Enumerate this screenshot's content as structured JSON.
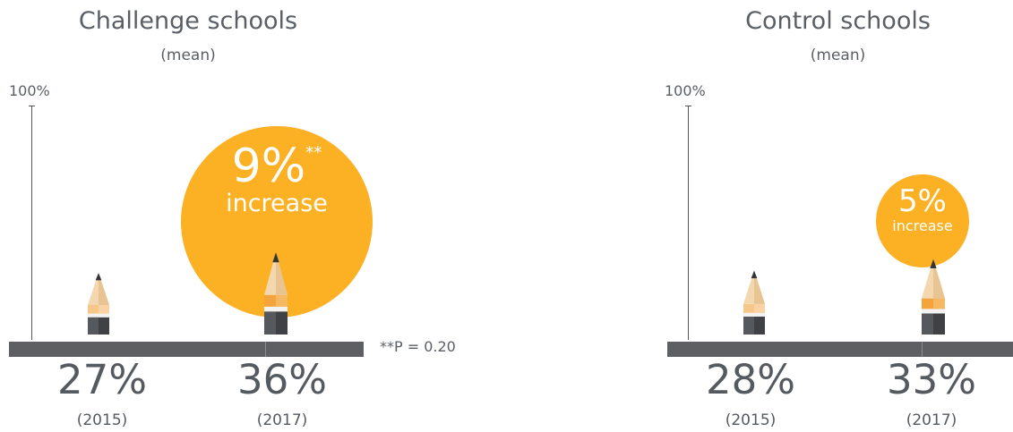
{
  "chart_data": [
    {
      "type": "bar",
      "title": "Challenge schools",
      "subtitle": "(mean)",
      "y_max_label": "100%",
      "ylim": [
        0,
        100
      ],
      "categories": [
        "(2015)",
        "(2017)"
      ],
      "values": [
        27,
        36
      ],
      "value_labels": [
        "27%",
        "36%"
      ],
      "change": {
        "value": "9%",
        "marker": "**",
        "label": "increase"
      },
      "note": "**P = 0.20",
      "colors": {
        "bubble": "#fbb123",
        "base": "#5d5f63"
      }
    },
    {
      "type": "bar",
      "title": "Control schools",
      "subtitle": "(mean)",
      "y_max_label": "100%",
      "ylim": [
        0,
        100
      ],
      "categories": [
        "(2015)",
        "(2017)"
      ],
      "values": [
        28,
        33
      ],
      "value_labels": [
        "28%",
        "33%"
      ],
      "change": {
        "value": "5%",
        "label": "increase"
      },
      "colors": {
        "bubble": "#fbb123",
        "base": "#5d5f63"
      }
    }
  ]
}
